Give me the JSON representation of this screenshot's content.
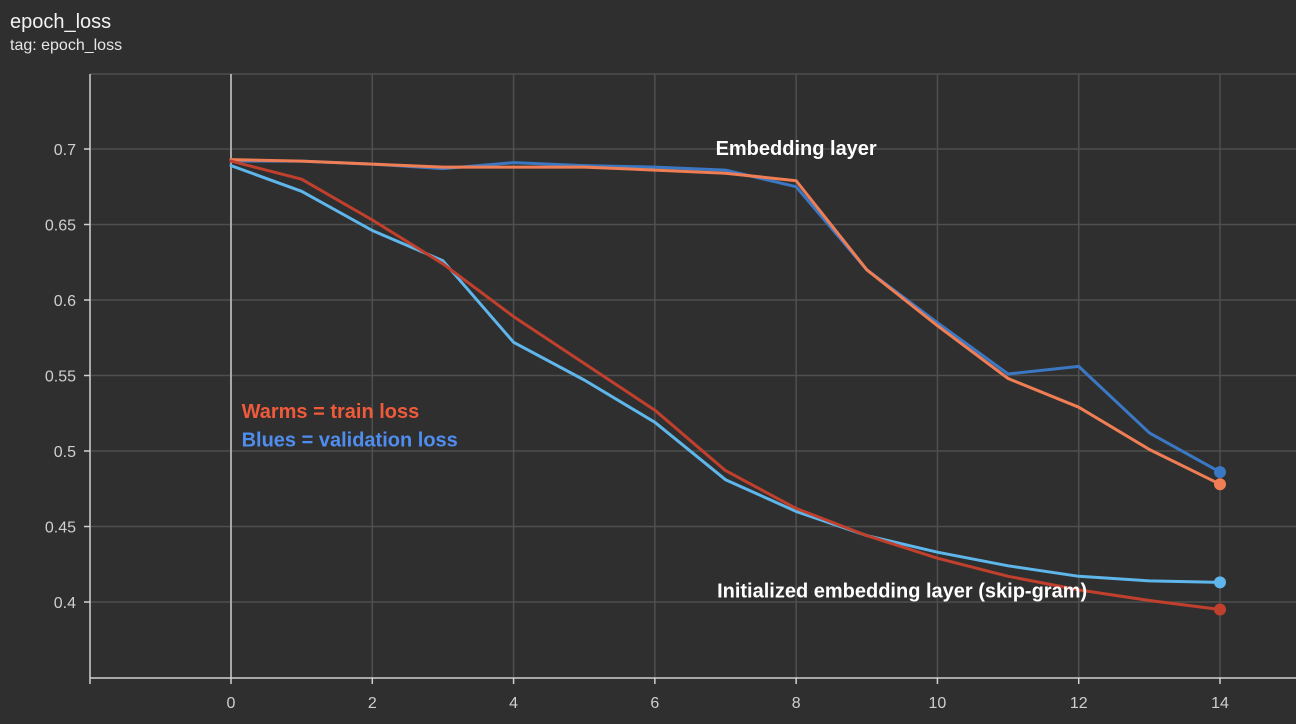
{
  "header": {
    "title": "epoch_loss",
    "subtitle": "tag: epoch_loss"
  },
  "chart_data": {
    "type": "line",
    "x_ticks": [
      0,
      2,
      4,
      6,
      8,
      10,
      12,
      14
    ],
    "y_ticks": [
      0.4,
      0.45,
      0.5,
      0.55,
      0.6,
      0.65,
      0.7
    ],
    "xlim": [
      -2,
      14.7
    ],
    "ylim": [
      0.35,
      0.75
    ],
    "grid": true,
    "x": [
      0,
      1,
      2,
      3,
      4,
      5,
      6,
      7,
      8,
      9,
      10,
      11,
      12,
      13,
      14
    ],
    "series": [
      {
        "color": "#3b78c4",
        "marker_end": true,
        "values": [
          0.692,
          0.692,
          0.69,
          0.687,
          0.691,
          0.689,
          0.688,
          0.686,
          0.675,
          0.62,
          0.585,
          0.551,
          0.556,
          0.512,
          0.486
        ]
      },
      {
        "color": "#f07e55",
        "marker_end": true,
        "values": [
          0.693,
          0.692,
          0.69,
          0.688,
          0.688,
          0.688,
          0.686,
          0.684,
          0.679,
          0.62,
          0.583,
          0.548,
          0.529,
          0.501,
          0.478
        ]
      },
      {
        "color": "#5eb6ea",
        "marker_end": true,
        "values": [
          0.689,
          0.672,
          0.646,
          0.626,
          0.572,
          0.547,
          0.519,
          0.481,
          0.46,
          0.444,
          0.433,
          0.424,
          0.417,
          0.414,
          0.413
        ]
      },
      {
        "color": "#c1402d",
        "marker_end": true,
        "values": [
          0.692,
          0.68,
          0.653,
          0.624,
          0.589,
          0.558,
          0.527,
          0.487,
          0.462,
          0.444,
          0.429,
          0.417,
          0.408,
          0.401,
          0.395
        ]
      }
    ],
    "annotations": [
      {
        "text": "Embedding layer",
        "color": "#ffffff",
        "x": 8,
        "y": 0.696,
        "anchor": "middle"
      },
      {
        "text": "Initialized embedding layer (skip-gram)",
        "color": "#ffffff",
        "x": 9.5,
        "y": 0.403,
        "anchor": "middle"
      },
      {
        "text": "Warms = train loss",
        "color": "#f05a3a",
        "x": 0.15,
        "y": 0.522,
        "anchor": "start"
      },
      {
        "text": "Blues = validation loss",
        "color": "#4f8ef0",
        "x": 0.15,
        "y": 0.503,
        "anchor": "start"
      }
    ]
  }
}
